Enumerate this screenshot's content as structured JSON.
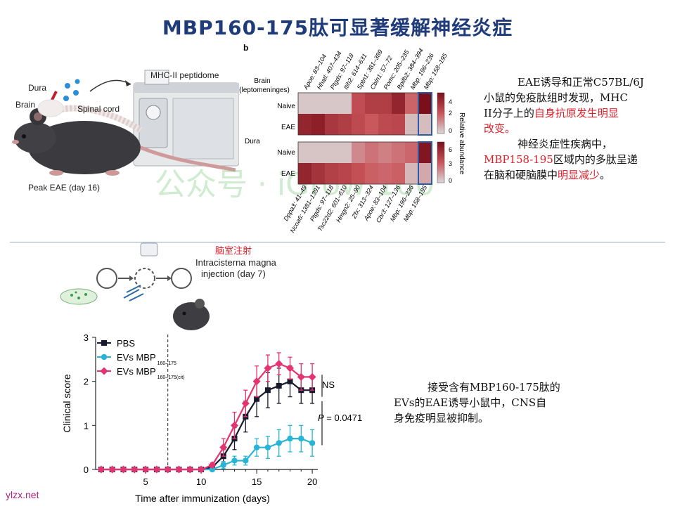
{
  "page": {
    "title": "MBP160-175肽可显著缓解神经炎症",
    "watermark": "公众号 · iGrow 100",
    "footer": "ylzx.net"
  },
  "panel_a": {
    "dura_label": "Dura",
    "brain_label": "Brain",
    "spinal_cord_label": "Spinal cord",
    "instrument_label": "MHC-II peptidome",
    "peak_label": "Peak EAE (day 16)"
  },
  "panel_b": {
    "letter": "b",
    "brain_header": "Brain",
    "brain_subheader": "(leptomeninges)",
    "dura_header": "Dura",
    "row_labels": [
      "Naive",
      "EAE"
    ],
    "top_columns": [
      "Apoe: 83–104",
      "Hhatl: 407–434",
      "Ptgds: 97–118",
      "Itih2: 614–631",
      "Sptn1: 381–389",
      "Cbln1: 57–72",
      "Pomc: 205–235",
      "Bpifb2: 384–394",
      "Mbp: 196–236",
      "Mbp: 158–195"
    ],
    "bottom_columns": [
      "Dppa3: 41–49",
      "Ncoa6: 1381–1391",
      "Ptgds: 97–118",
      "Tsc22d2: 601–610",
      "Hmgn2: 25–90",
      "Zfx: 313–324",
      "Apoe: 83–104",
      "Cbr3: 127–136",
      "Mbp: 196–236",
      "Mbp: 158–195"
    ],
    "brain_values": [
      [
        0.3,
        0.3,
        0.3,
        0.3,
        2.5,
        3.0,
        3.0,
        3.8,
        2.0,
        4.5
      ],
      [
        3.8,
        4.0,
        3.2,
        3.0,
        2.6,
        2.2,
        2.6,
        2.7,
        0.5,
        0.5
      ]
    ],
    "dura_values": [
      [
        0.5,
        0.5,
        0.5,
        0.5,
        2.0,
        2.5,
        2.2,
        2.5,
        2.8,
        6.2
      ],
      [
        5.5,
        4.8,
        4.2,
        4.0,
        3.5,
        3.0,
        2.8,
        3.0,
        0.8,
        1.2
      ]
    ],
    "colorbar_top_ticks": [
      "4",
      "2",
      "0"
    ],
    "colorbar_bottom_ticks": [
      "6",
      "3",
      "0"
    ],
    "colorbar_label": "Relative abundance",
    "scale_max_top": 4.5,
    "scale_max_bottom": 6.5
  },
  "note1": {
    "line1": "EAE诱导和正常C57BL/6J",
    "line2": "小鼠的免疫肽组时发现，MHC",
    "line3a": "II分子上的",
    "line3b": "自身抗原发生明显",
    "line4": "改变。",
    "line5": "神经炎症性疾病中，",
    "line6a": "MBP158-195",
    "line6b": "区域内的多肽呈递",
    "line7a": "在脑和硬脑膜中",
    "line7b": "明显减少",
    "line7c": "。"
  },
  "panel_c": {
    "injection_cn": "脑室注射",
    "injection_line1": "Intracisterna magna",
    "injection_line2": "injection (day 7)"
  },
  "note2": {
    "line1": "接受含有MBP160-175肽的",
    "line2": "EVs的EAE诱导小鼠中，CNS自",
    "line3": "身免疫明显被抑制。"
  },
  "chart_data": {
    "type": "line",
    "title": "",
    "xlabel": "Time after immunization (days)",
    "ylabel": "Clinical score",
    "xlim": [
      0.5,
      20.5
    ],
    "ylim": [
      0,
      3
    ],
    "xticks": [
      5,
      10,
      15,
      20
    ],
    "yticks": [
      0,
      1,
      2,
      3
    ],
    "vline_day": 7,
    "x": [
      1,
      2,
      3,
      4,
      5,
      6,
      7,
      8,
      9,
      10,
      11,
      12,
      13,
      14,
      15,
      16,
      17,
      18,
      19,
      20
    ],
    "series": [
      {
        "name": "PBS",
        "color": "#1a1a2e",
        "marker": "square",
        "values": [
          0,
          0,
          0,
          0,
          0,
          0,
          0,
          0,
          0,
          0,
          0.05,
          0.3,
          0.7,
          1.2,
          1.6,
          1.8,
          1.9,
          2.0,
          1.8,
          1.8
        ],
        "errors": [
          0,
          0,
          0,
          0,
          0,
          0,
          0,
          0,
          0,
          0,
          0.05,
          0.15,
          0.25,
          0.35,
          0.4,
          0.4,
          0.4,
          0.35,
          0.3,
          0.3
        ]
      },
      {
        "name": "EVs MBP",
        "subscript": "160–175",
        "color": "#29b4d6",
        "marker": "circle",
        "values": [
          0,
          0,
          0,
          0,
          0,
          0,
          0,
          0,
          0,
          0,
          0,
          0.1,
          0.2,
          0.2,
          0.5,
          0.5,
          0.6,
          0.7,
          0.7,
          0.6
        ],
        "errors": [
          0,
          0,
          0,
          0,
          0,
          0,
          0,
          0,
          0,
          0,
          0,
          0.08,
          0.1,
          0.1,
          0.2,
          0.25,
          0.3,
          0.3,
          0.3,
          0.3
        ]
      },
      {
        "name": "EVs MBP",
        "subscript": "160–175(cit)",
        "color": "#e4336f",
        "marker": "diamond",
        "values": [
          0,
          0,
          0,
          0,
          0,
          0,
          0,
          0,
          0,
          0,
          0.1,
          0.5,
          1.0,
          1.5,
          2.0,
          2.3,
          2.4,
          2.3,
          2.1,
          2.1
        ],
        "errors": [
          0,
          0,
          0,
          0,
          0,
          0,
          0,
          0,
          0,
          0,
          0.05,
          0.2,
          0.3,
          0.3,
          0.35,
          0.3,
          0.25,
          0.25,
          0.3,
          0.3
        ]
      }
    ],
    "annotations": {
      "ns": "NS",
      "p_label": "P",
      "p_value": " = 0.0471"
    }
  }
}
